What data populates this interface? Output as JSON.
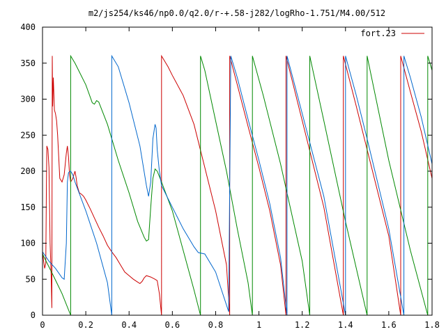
{
  "chart_data": {
    "type": "line",
    "title": "m2/js254/ks46/np0.0/q2.0/r-+.58-j282/logRho-1.751/M4.00/512",
    "xlabel": "",
    "ylabel": "",
    "xlim": [
      0,
      1.8
    ],
    "ylim": [
      0,
      400
    ],
    "grid": false,
    "legend": {
      "position": "top-right",
      "label": "fort.23",
      "color": "#cc0000"
    },
    "x_ticks": [
      {
        "value": 0,
        "label": "0"
      },
      {
        "value": 0.2,
        "label": "0.2"
      },
      {
        "value": 0.4,
        "label": "0.4"
      },
      {
        "value": 0.6,
        "label": "0.6"
      },
      {
        "value": 0.8,
        "label": "0.8"
      },
      {
        "value": 1.0,
        "label": "1"
      },
      {
        "value": 1.2,
        "label": "1.2"
      },
      {
        "value": 1.4,
        "label": "1.4"
      },
      {
        "value": 1.6,
        "label": "1.6"
      },
      {
        "value": 1.8,
        "label": "1.8"
      }
    ],
    "y_ticks": [
      {
        "value": 0,
        "label": "0"
      },
      {
        "value": 50,
        "label": "50"
      },
      {
        "value": 100,
        "label": "100"
      },
      {
        "value": 150,
        "label": "150"
      },
      {
        "value": 200,
        "label": "200"
      },
      {
        "value": 250,
        "label": "250"
      },
      {
        "value": 300,
        "label": "300"
      },
      {
        "value": 350,
        "label": "350"
      },
      {
        "value": 400,
        "label": "400"
      }
    ],
    "series": [
      {
        "name": "fort.23",
        "color": "#cc0000",
        "points": [
          [
            0,
            88
          ],
          [
            0.005,
            75
          ],
          [
            0.01,
            65
          ],
          [
            0.015,
            72
          ],
          [
            0.018,
            180
          ],
          [
            0.02,
            235
          ],
          [
            0.025,
            230
          ],
          [
            0.03,
            205
          ],
          [
            0.035,
            100
          ],
          [
            0.04,
            55
          ],
          [
            0.043,
            10
          ],
          [
            0.045,
            360
          ],
          [
            0.047,
            290
          ],
          [
            0.05,
            330
          ],
          [
            0.055,
            285
          ],
          [
            0.06,
            280
          ],
          [
            0.065,
            270
          ],
          [
            0.07,
            250
          ],
          [
            0.08,
            190
          ],
          [
            0.09,
            185
          ],
          [
            0.1,
            195
          ],
          [
            0.11,
            225
          ],
          [
            0.115,
            235
          ],
          [
            0.12,
            220
          ],
          [
            0.125,
            195
          ],
          [
            0.13,
            185
          ],
          [
            0.14,
            190
          ],
          [
            0.15,
            200
          ],
          [
            0.155,
            192
          ],
          [
            0.16,
            180
          ],
          [
            0.17,
            170
          ],
          [
            0.18,
            168
          ],
          [
            0.19,
            165
          ],
          [
            0.2,
            160
          ],
          [
            0.22,
            148
          ],
          [
            0.24,
            135
          ],
          [
            0.26,
            122
          ],
          [
            0.28,
            110
          ],
          [
            0.3,
            97
          ],
          [
            0.32,
            88
          ],
          [
            0.34,
            80
          ],
          [
            0.36,
            70
          ],
          [
            0.38,
            60
          ],
          [
            0.4,
            55
          ],
          [
            0.42,
            50
          ],
          [
            0.44,
            46
          ],
          [
            0.45,
            44
          ],
          [
            0.46,
            47
          ],
          [
            0.47,
            52
          ],
          [
            0.48,
            55
          ],
          [
            0.5,
            53
          ],
          [
            0.52,
            50
          ],
          [
            0.53,
            48
          ],
          [
            0.54,
            30
          ],
          [
            0.55,
            0
          ],
          [
            0.55,
            360
          ],
          [
            0.58,
            345
          ],
          [
            0.6,
            333
          ],
          [
            0.65,
            305
          ],
          [
            0.7,
            265
          ],
          [
            0.75,
            205
          ],
          [
            0.8,
            145
          ],
          [
            0.85,
            70
          ],
          [
            0.865,
            0
          ],
          [
            0.865,
            360
          ],
          [
            0.9,
            320
          ],
          [
            0.95,
            262
          ],
          [
            1,
            205
          ],
          [
            1.05,
            145
          ],
          [
            1.1,
            70
          ],
          [
            1.125,
            0
          ],
          [
            1.125,
            360
          ],
          [
            1.2,
            270
          ],
          [
            1.3,
            150
          ],
          [
            1.39,
            0
          ],
          [
            1.39,
            360
          ],
          [
            1.45,
            290
          ],
          [
            1.5,
            230
          ],
          [
            1.6,
            110
          ],
          [
            1.655,
            0
          ],
          [
            1.655,
            360
          ],
          [
            1.7,
            310
          ],
          [
            1.75,
            255
          ],
          [
            1.8,
            190
          ]
        ]
      },
      {
        "name": "",
        "color": "#008800",
        "points": [
          [
            0,
            85
          ],
          [
            0.05,
            55
          ],
          [
            0.09,
            30
          ],
          [
            0.13,
            0
          ],
          [
            0.13,
            360
          ],
          [
            0.15,
            350
          ],
          [
            0.2,
            320
          ],
          [
            0.23,
            295
          ],
          [
            0.24,
            293
          ],
          [
            0.25,
            298
          ],
          [
            0.26,
            296
          ],
          [
            0.3,
            265
          ],
          [
            0.35,
            215
          ],
          [
            0.4,
            170
          ],
          [
            0.44,
            130
          ],
          [
            0.47,
            108
          ],
          [
            0.48,
            103
          ],
          [
            0.49,
            105
          ],
          [
            0.5,
            150
          ],
          [
            0.51,
            190
          ],
          [
            0.52,
            203
          ],
          [
            0.53,
            200
          ],
          [
            0.55,
            185
          ],
          [
            0.6,
            145
          ],
          [
            0.65,
            90
          ],
          [
            0.7,
            35
          ],
          [
            0.73,
            0
          ],
          [
            0.73,
            360
          ],
          [
            0.75,
            340
          ],
          [
            0.8,
            270
          ],
          [
            0.85,
            200
          ],
          [
            0.9,
            120
          ],
          [
            0.95,
            45
          ],
          [
            0.97,
            0
          ],
          [
            0.97,
            360
          ],
          [
            1.02,
            305
          ],
          [
            1.1,
            210
          ],
          [
            1.2,
            75
          ],
          [
            1.235,
            0
          ],
          [
            1.235,
            360
          ],
          [
            1.3,
            270
          ],
          [
            1.4,
            130
          ],
          [
            1.5,
            0
          ],
          [
            1.5,
            360
          ],
          [
            1.6,
            215
          ],
          [
            1.7,
            90
          ],
          [
            1.78,
            0
          ],
          [
            1.78,
            360
          ],
          [
            1.8,
            340
          ]
        ]
      },
      {
        "name": "",
        "color": "#0066cc",
        "points": [
          [
            0,
            88
          ],
          [
            0.03,
            75
          ],
          [
            0.06,
            65
          ],
          [
            0.09,
            52
          ],
          [
            0.1,
            50
          ],
          [
            0.11,
            100
          ],
          [
            0.115,
            185
          ],
          [
            0.12,
            198
          ],
          [
            0.13,
            200
          ],
          [
            0.14,
            195
          ],
          [
            0.15,
            185
          ],
          [
            0.2,
            145
          ],
          [
            0.25,
            100
          ],
          [
            0.3,
            45
          ],
          [
            0.32,
            0
          ],
          [
            0.32,
            360
          ],
          [
            0.35,
            345
          ],
          [
            0.4,
            295
          ],
          [
            0.45,
            235
          ],
          [
            0.48,
            180
          ],
          [
            0.49,
            165
          ],
          [
            0.5,
            185
          ],
          [
            0.51,
            245
          ],
          [
            0.52,
            265
          ],
          [
            0.525,
            260
          ],
          [
            0.53,
            230
          ],
          [
            0.54,
            200
          ],
          [
            0.55,
            180
          ],
          [
            0.6,
            150
          ],
          [
            0.65,
            120
          ],
          [
            0.7,
            95
          ],
          [
            0.72,
            87
          ],
          [
            0.75,
            85
          ],
          [
            0.8,
            60
          ],
          [
            0.86,
            5
          ],
          [
            0.87,
            360
          ],
          [
            0.9,
            330
          ],
          [
            0.95,
            272
          ],
          [
            1,
            215
          ],
          [
            1.05,
            155
          ],
          [
            1.1,
            80
          ],
          [
            1.13,
            0
          ],
          [
            1.13,
            360
          ],
          [
            1.2,
            280
          ],
          [
            1.3,
            165
          ],
          [
            1.4,
            0
          ],
          [
            1.4,
            360
          ],
          [
            1.45,
            305
          ],
          [
            1.5,
            245
          ],
          [
            1.6,
            120
          ],
          [
            1.67,
            0
          ],
          [
            1.67,
            360
          ],
          [
            1.7,
            330
          ],
          [
            1.75,
            275
          ],
          [
            1.8,
            210
          ]
        ]
      }
    ]
  }
}
